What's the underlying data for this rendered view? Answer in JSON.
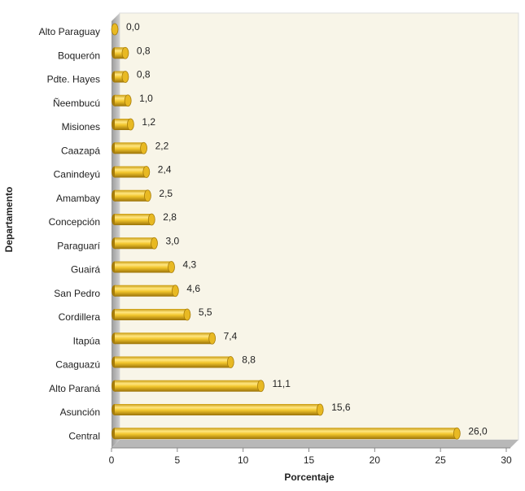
{
  "chart_data": {
    "type": "bar",
    "orientation": "horizontal",
    "xlabel": "Porcentaje",
    "ylabel": "Departamento",
    "categories": [
      "Alto Paraguay",
      "Boquerón",
      "Pdte. Hayes",
      "Ñeembucú",
      "Misiones",
      "Caazapá",
      "Canindeyú",
      "Amambay",
      "Concepción",
      "Paraguarí",
      "Guairá",
      "San Pedro",
      "Cordillera",
      "Itapúa",
      "Caaguazú",
      "Alto Paraná",
      "Asunción",
      "Central"
    ],
    "values": [
      0.0,
      0.8,
      0.8,
      1.0,
      1.2,
      2.2,
      2.4,
      2.5,
      2.8,
      3.0,
      4.3,
      4.6,
      5.5,
      7.4,
      8.8,
      11.1,
      15.6,
      26.0
    ],
    "value_labels": [
      "0,0",
      "0,8",
      "0,8",
      "1,0",
      "1,2",
      "2,2",
      "2,4",
      "2,5",
      "2,8",
      "3,0",
      "4,3",
      "4,6",
      "5,5",
      "7,4",
      "8,8",
      "11,1",
      "15,6",
      "26,0"
    ],
    "color": "#e8b923",
    "xlim": [
      0,
      30
    ],
    "xticks": [
      0,
      5,
      10,
      15,
      20,
      25,
      30
    ]
  }
}
